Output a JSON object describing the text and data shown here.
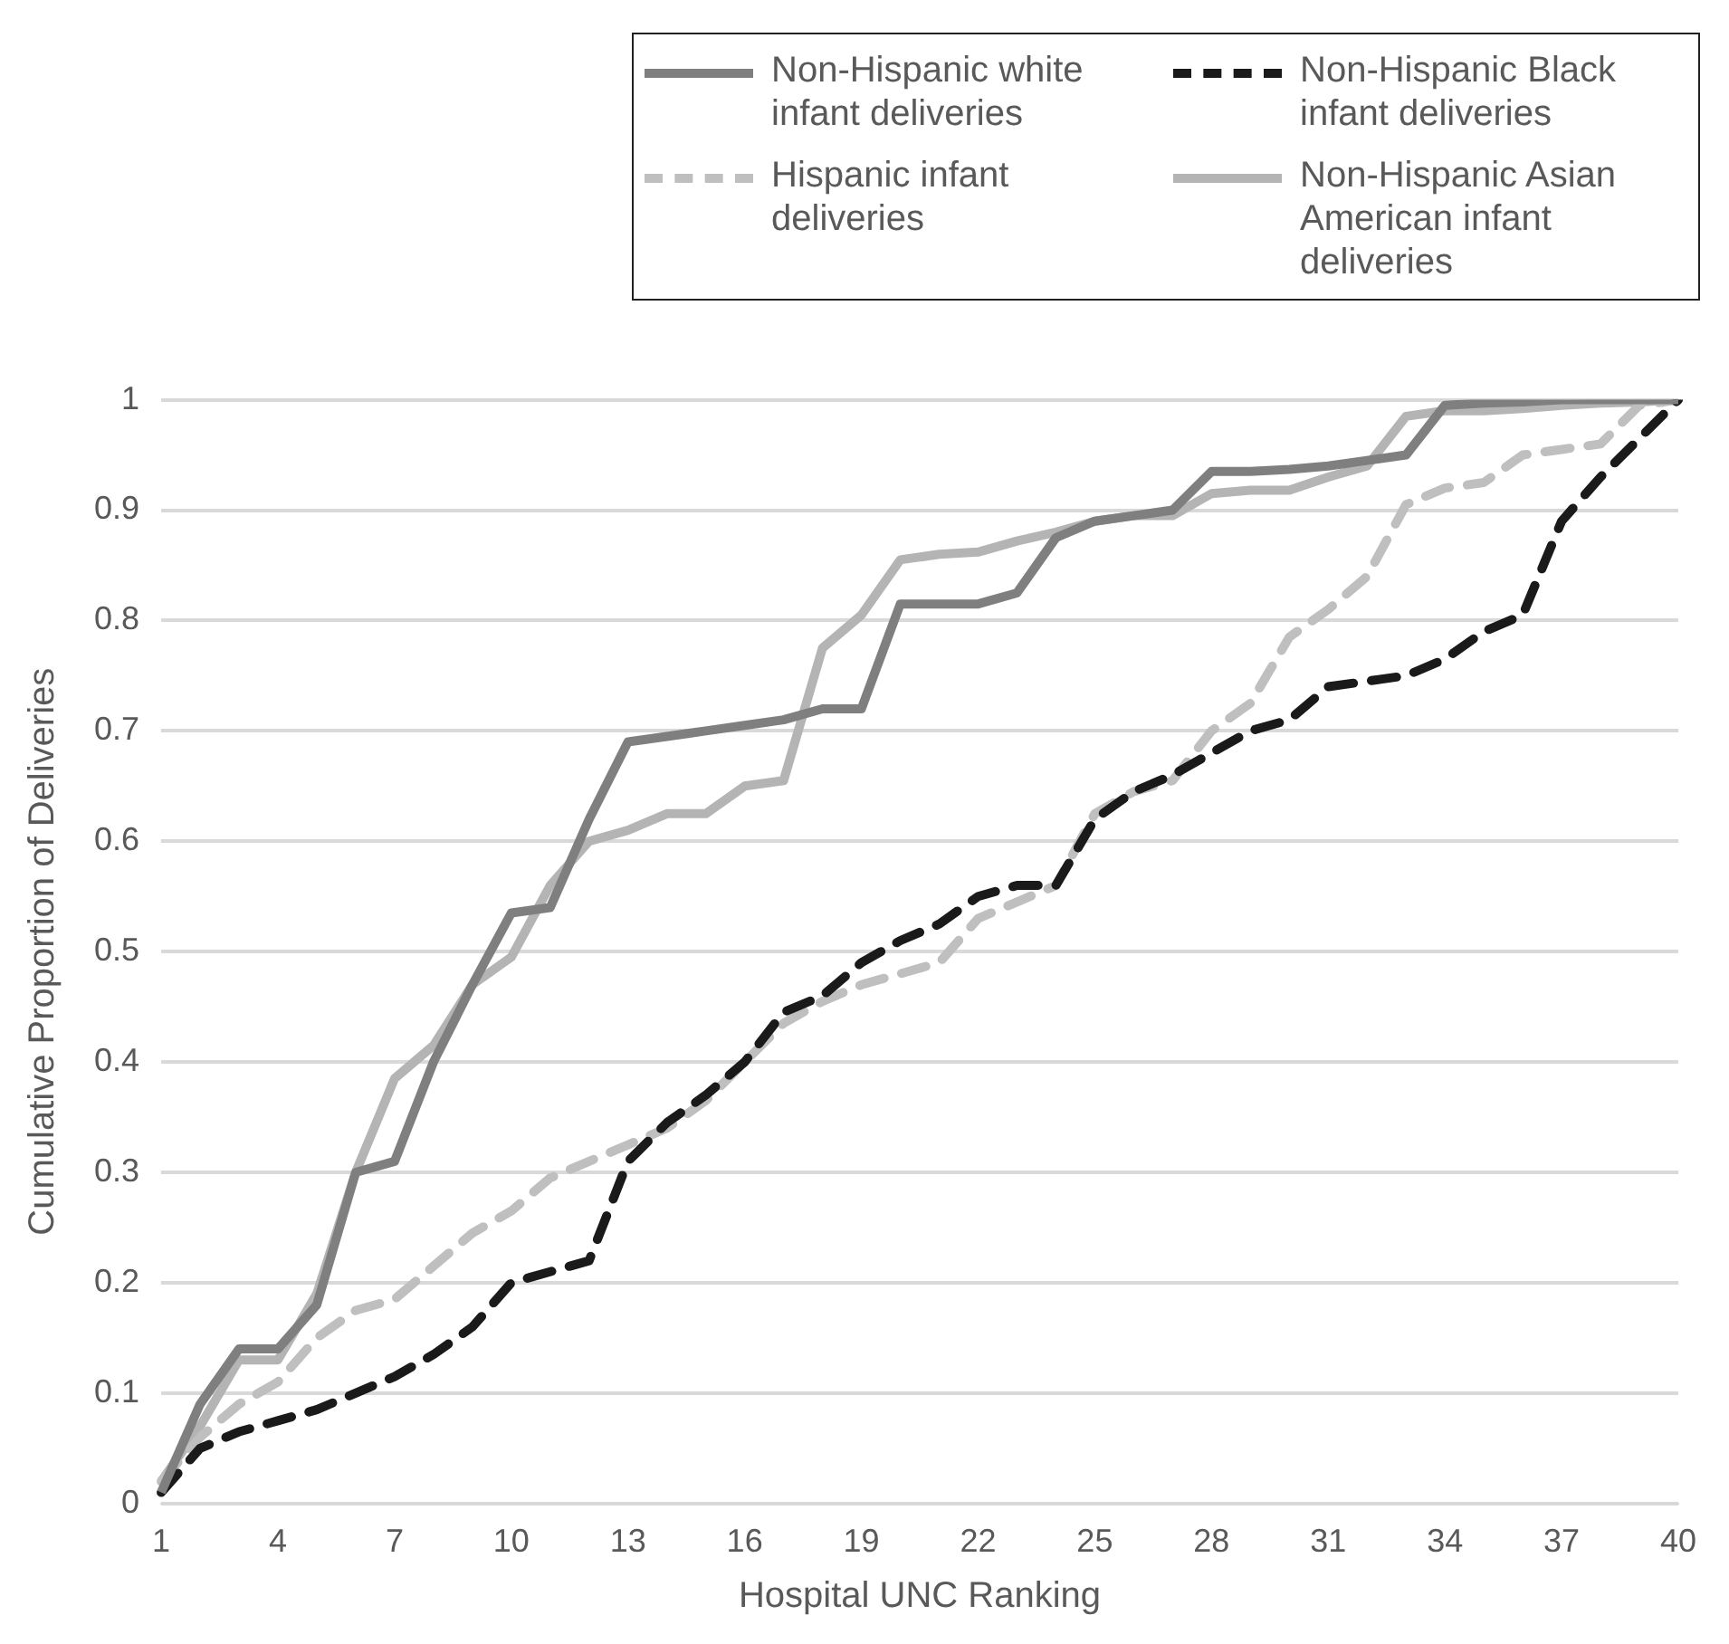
{
  "chart_data": {
    "type": "line",
    "xlabel": "Hospital UNC Ranking",
    "ylabel": "Cumulative Proportion of Deliveries",
    "categories": [
      "1",
      null,
      null,
      "4",
      null,
      null,
      "7",
      null,
      null,
      "10",
      null,
      null,
      "13",
      null,
      null,
      "16",
      null,
      null,
      "19",
      null,
      null,
      "22",
      null,
      null,
      "25",
      null,
      null,
      "28",
      null,
      null,
      "31",
      null,
      null,
      "34",
      null,
      null,
      "37",
      null,
      null,
      "40"
    ],
    "series": [
      {
        "name": "Non-Hispanic white infant deliveries",
        "color": "#7f7f7f",
        "line_style": "solid",
        "values": [
          0.01,
          0.09,
          0.14,
          0.14,
          0.18,
          0.3,
          0.31,
          0.4,
          0.47,
          0.535,
          0.54,
          0.62,
          0.69,
          0.695,
          0.7,
          0.705,
          0.71,
          0.72,
          0.72,
          0.815,
          0.815,
          0.815,
          0.825,
          0.875,
          0.89,
          0.895,
          0.9,
          0.935,
          0.935,
          0.937,
          0.94,
          0.945,
          0.95,
          0.995,
          0.997,
          0.998,
          1,
          1,
          1,
          1
        ]
      },
      {
        "name": "Non-Hispanic Black infant deliveries",
        "color": "#1a1a1a",
        "line_style": "dashed",
        "values": [
          0.01,
          0.05,
          0.065,
          0.075,
          0.085,
          0.1,
          0.115,
          0.135,
          0.16,
          0.2,
          0.21,
          0.22,
          0.31,
          0.345,
          0.37,
          0.4,
          0.445,
          0.46,
          0.49,
          0.51,
          0.525,
          0.55,
          0.56,
          0.56,
          0.62,
          0.645,
          0.66,
          0.68,
          0.7,
          0.71,
          0.74,
          0.745,
          0.75,
          0.765,
          0.79,
          0.805,
          0.89,
          0.93,
          0.965,
          1
        ]
      },
      {
        "name": "Hispanic infant deliveries",
        "color": "#bfbfbf",
        "line_style": "dashed",
        "values": [
          0.02,
          0.06,
          0.09,
          0.11,
          0.15,
          0.175,
          0.185,
          0.215,
          0.245,
          0.265,
          0.295,
          0.31,
          0.325,
          0.34,
          0.365,
          0.4,
          0.435,
          0.455,
          0.47,
          0.48,
          0.49,
          0.53,
          0.545,
          0.56,
          0.625,
          0.645,
          0.655,
          0.7,
          0.725,
          0.785,
          0.81,
          0.84,
          0.905,
          0.92,
          0.925,
          0.95,
          0.955,
          0.96,
          0.995,
          1
        ]
      },
      {
        "name": "Non-Hispanic Asian American infant deliveries",
        "color": "#b4b4b4",
        "line_style": "solid",
        "values": [
          0.02,
          0.07,
          0.13,
          0.13,
          0.19,
          0.3,
          0.385,
          0.415,
          0.47,
          0.495,
          0.56,
          0.6,
          0.61,
          0.625,
          0.625,
          0.65,
          0.655,
          0.775,
          0.805,
          0.855,
          0.86,
          0.862,
          0.872,
          0.88,
          0.89,
          0.895,
          0.895,
          0.915,
          0.918,
          0.918,
          0.93,
          0.94,
          0.985,
          0.99,
          0.99,
          0.992,
          0.995,
          0.997,
          0.998,
          1
        ]
      }
    ],
    "ylim": [
      0,
      1
    ],
    "yticks": [
      0,
      0.1,
      0.2,
      0.3,
      0.4,
      0.5,
      0.6,
      0.7,
      0.8,
      0.9,
      1
    ],
    "grid": "y",
    "legend": "top right",
    "marker": "none"
  }
}
